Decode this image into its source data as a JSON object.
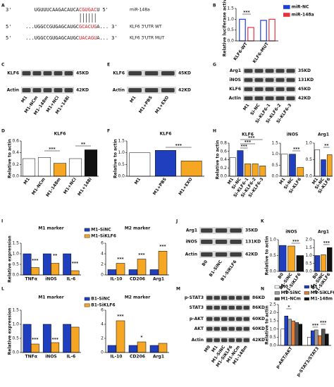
{
  "panel_labels": [
    "A",
    "B",
    "C",
    "E",
    "G",
    "D",
    "F",
    "H",
    "I",
    "J",
    "K",
    "L",
    "M",
    "N"
  ],
  "sequence": {
    "lines": [
      {
        "start": "3'",
        "parts": [
          "UGUUUCAAGACAUCA",
          "CGUGAC",
          "U"
        ],
        "end": "5'",
        "name": "miR-148a"
      },
      {
        "start": "5'",
        "parts": [
          "...UGGCCGUGAGCAUGC",
          "GCACUG",
          "A..."
        ],
        "end": "3'",
        "name": "KLF6 3'UTR WT"
      },
      {
        "start": "5'",
        "parts": [
          "...UGGCCGUGAGCAUGC",
          "UACAGU",
          "A..."
        ],
        "end": "3'",
        "name": "KLF6 3'UTR MUT"
      }
    ]
  },
  "blots": [
    {
      "rows": [
        {
          "name": "KLF6",
          "kd": "45KD"
        },
        {
          "name": "Actin",
          "kd": "42KD"
        }
      ],
      "lanes": [
        "M1",
        "M1-NCm",
        "M1-148m",
        "M1+NCi",
        "M1+148i"
      ]
    },
    {
      "rows": [
        {
          "name": "KLF6",
          "kd": "45KD"
        },
        {
          "name": "Actin",
          "kd": "42KD"
        }
      ],
      "lanes": [
        "M1",
        "M1+PBS",
        "M1+EXO"
      ]
    },
    {
      "rows": [
        {
          "name": "Arg1",
          "kd": "35KD"
        },
        {
          "name": "iNOS",
          "kd": "131KD"
        },
        {
          "name": "KLF6",
          "kd": "45KD"
        },
        {
          "name": "Actin",
          "kd": "42KD"
        }
      ],
      "lanes": [
        "M1",
        "Si-NC",
        "Si-KLF6-1",
        "Si-KLF6-2",
        "Si-KLF6-3"
      ]
    },
    {
      "rows": [
        {
          "name": "Arg1",
          "kd": "35KD"
        },
        {
          "name": "iNOS",
          "kd": "131KD"
        },
        {
          "name": "Actin",
          "kd": "42KD"
        }
      ],
      "lanes": [
        "B0",
        "B1-SiNC",
        "B1-SiKLF6"
      ]
    },
    {
      "rows": [
        {
          "name": "p-STAT3",
          "kd": "86KD"
        },
        {
          "name": "STAT3",
          "kd": "86KD"
        },
        {
          "name": "p-AKT",
          "kd": "60KD"
        },
        {
          "name": "AKT",
          "kd": "60KD"
        },
        {
          "name": "Actin",
          "kd": "42KD"
        }
      ],
      "lanes": [
        "M0",
        "M1",
        "M1-SiNC",
        "M1-SiKLF6",
        "M1-NCm",
        "M1-148m"
      ]
    }
  ],
  "chart_data": [
    {
      "type": "bar",
      "ylabel": "Relative luciferase activity",
      "categories": [
        "KLF6-WT",
        "KLF6-MUT"
      ],
      "series": [
        {
          "name": "miR-NC",
          "color": "#1a3fd6",
          "values": [
            1.0,
            0.95
          ]
        },
        {
          "name": "miR-148a",
          "color": "#e8313d",
          "values": [
            0.62,
            1.0
          ]
        }
      ],
      "ylim": [
        0,
        1.5
      ],
      "yticks": [
        {
          "value": 0,
          "label": "0.0"
        },
        0.5,
        {
          "value": 1,
          "label": "1.0"
        },
        1.5
      ],
      "bar_style": "outline",
      "legend": "right",
      "annotations": [
        "***"
      ]
    },
    {
      "type": "bar",
      "title": "KLF6",
      "ylabel": "Relative to actin",
      "categories": [
        "M1",
        "M1-NCm",
        "M1-148m",
        "M1+NCi",
        "M1+148i"
      ],
      "values": [
        0.3,
        0.32,
        0.22,
        0.3,
        0.45
      ],
      "colors": [
        "#ffffff",
        "#ffffff",
        "#f5a623",
        "#ffffff",
        "#111111"
      ],
      "ylim": [
        0,
        0.6
      ],
      "yticks": [
        {
          "value": 0,
          "label": "0.0"
        },
        0.2,
        0.4,
        0.6
      ],
      "annotations": [
        "***",
        "**"
      ]
    },
    {
      "type": "bar",
      "title": "KLF6",
      "ylabel": "Relative to actin",
      "categories": [
        "M1",
        "M1+PBS",
        "M1+EXO"
      ],
      "values": [
        1.0,
        1.1,
        0.65
      ],
      "colors": [
        "#ffffff",
        "#1f3fbf",
        "#f5a623"
      ],
      "ylim": [
        0,
        1.5
      ],
      "yticks": [
        {
          "value": 0,
          "label": "0.0"
        },
        0.5,
        {
          "value": 1,
          "label": "1.0"
        },
        1.5
      ],
      "annotations": [
        "***"
      ]
    },
    {
      "type": "bar",
      "title": "KLF6",
      "ylabel": "Relative to actin",
      "categories": [
        "M1",
        "Si-NC",
        "Si-KLF6-1",
        "Si-KLF6-2",
        "Si-KLF6-3"
      ],
      "values": [
        0.45,
        0.62,
        0.3,
        0.3,
        0.25
      ],
      "colors": [
        "#ffffff",
        "#1f3fbf",
        "#f5a623",
        "#f5a623",
        "#f5a623"
      ],
      "ylim": [
        0,
        0.8
      ],
      "yticks": [
        {
          "value": 0,
          "label": "0.0"
        },
        0.2,
        0.4,
        0.6,
        0.8
      ],
      "annotations": [
        "***",
        "***",
        "***"
      ]
    },
    {
      "type": "bar",
      "title": "iNOS",
      "categories": [
        "M1",
        "Si-NC",
        "Si-KLF6"
      ],
      "values": [
        1.0,
        1.0,
        0.4
      ],
      "colors": [
        "#ffffff",
        "#1f3fbf",
        "#f5a623"
      ],
      "ylim": [
        0,
        1.5
      ],
      "yticks": [
        {
          "value": 0,
          "label": "0.0"
        },
        0.5,
        {
          "value": 1,
          "label": "1.0"
        },
        1.5
      ],
      "annotations": [
        "***"
      ]
    },
    {
      "type": "bar",
      "title": "Arg1",
      "categories": [
        "M1",
        "Si-NC",
        "Si-KLF6"
      ],
      "values": [
        0.8,
        0.5,
        0.65
      ],
      "colors": [
        "#ffffff",
        "#1f3fbf",
        "#f5a623"
      ],
      "ylim": [
        0,
        1.0
      ],
      "yticks": [
        {
          "value": 0,
          "label": "0.0"
        },
        0.5,
        {
          "value": 1,
          "label": "1.0"
        }
      ],
      "annotations": [
        "**"
      ]
    },
    {
      "type": "bar",
      "title": "M1 marker",
      "ylabel": "Relative expression",
      "categories": [
        "TNFα",
        "iNOS",
        "IL-6"
      ],
      "series": [
        {
          "name": "M1-SiNC",
          "color": "#1f3fbf",
          "values": [
            1,
            1,
            1
          ]
        },
        {
          "name": "M1-SiKLF6",
          "color": "#f5a623",
          "values": [
            0.35,
            0.55,
            0.2
          ]
        }
      ],
      "ylim": [
        0,
        1.5
      ],
      "yticks": [
        {
          "value": 0,
          "label": "0.0"
        },
        0.5,
        {
          "value": 1,
          "label": "1.0"
        },
        1.5
      ],
      "legend": "top",
      "annotations": [
        "***",
        "**",
        "***"
      ]
    },
    {
      "type": "bar",
      "title": "M2 marker",
      "categories": [
        "IL-10",
        "CD206",
        "Arg1"
      ],
      "series": [
        {
          "color": "#1f3fbf",
          "values": [
            1,
            1,
            1
          ]
        },
        {
          "color": "#f5a623",
          "values": [
            2.2,
            3.0,
            4.5
          ]
        }
      ],
      "ylim": [
        0,
        6
      ],
      "yticks": [
        0,
        2,
        4,
        6
      ],
      "annotations": [
        "***",
        "***",
        "***"
      ]
    },
    {
      "type": "bar",
      "title": "iNOS",
      "ylabel": "Relative to actin",
      "categories": [
        "B0",
        "B1-SiNC",
        "B1-SiKLF6"
      ],
      "values": [
        0.82,
        0.8,
        0.5
      ],
      "colors": [
        "#1f3fbf",
        "#f5a623",
        "#111111"
      ],
      "ylim": [
        0,
        1.0
      ],
      "yticks": [
        {
          "value": 0,
          "label": "0.0"
        },
        0.5,
        {
          "value": 1,
          "label": "1.0"
        }
      ],
      "annotations": [
        "***"
      ]
    },
    {
      "type": "bar",
      "title": "Arg1",
      "categories": [
        "B0",
        "B1-SiNC",
        "B1-SiKLF6"
      ],
      "values": [
        1.0,
        1.05,
        1.5
      ],
      "colors": [
        "#1f3fbf",
        "#f5a623",
        "#111111"
      ],
      "ylim": [
        0,
        2.0
      ],
      "yticks": [
        {
          "value": 0,
          "label": "0.0"
        },
        0.5,
        {
          "value": 1,
          "label": "1.0"
        },
        1.5,
        {
          "value": 2,
          "label": "2.0"
        }
      ],
      "annotations": [
        "***"
      ]
    },
    {
      "type": "bar",
      "title": "M1 marker",
      "ylabel": "Relative expression",
      "categories": [
        "TNFα",
        "iNOS",
        "IL-6"
      ],
      "series": [
        {
          "name": "B1-SiNC",
          "color": "#1f3fbf",
          "values": [
            1,
            1,
            1
          ]
        },
        {
          "name": "B1-SiKLF6",
          "color": "#f5a623",
          "values": [
            0.3,
            0.35,
            0.9
          ]
        }
      ],
      "ylim": [
        0,
        1.5
      ],
      "yticks": [
        {
          "value": 0,
          "label": "0.0"
        },
        0.5,
        {
          "value": 1,
          "label": "1.0"
        },
        1.5
      ],
      "legend": "top",
      "annotations": [
        "***",
        "***"
      ]
    },
    {
      "type": "bar",
      "title": "M2 marker",
      "categories": [
        "IL-10",
        "CD206",
        "Arg1"
      ],
      "series": [
        {
          "color": "#1f3fbf",
          "values": [
            1,
            1,
            1
          ]
        },
        {
          "color": "#f5a623",
          "values": [
            4.5,
            1.5,
            1.3
          ]
        }
      ],
      "ylim": [
        0,
        6
      ],
      "yticks": [
        0,
        2,
        4,
        6
      ],
      "annotations": [
        "***",
        "*"
      ]
    },
    {
      "type": "bar",
      "ylabel": "Relative to actin",
      "categories": [
        "p-AKT/AKT",
        "p-STAT3/STAT3"
      ],
      "series": [
        {
          "name": "M0",
          "color": "#ffffff",
          "values": [
            1.0,
            0.5
          ]
        },
        {
          "name": "M1",
          "color": "#1f3fbf",
          "values": [
            1.8,
            0.9
          ]
        },
        {
          "name": "M1-SiNC",
          "color": "#9a9a9a",
          "values": [
            1.6,
            0.95
          ]
        },
        {
          "name": "M1-SiKLF6",
          "color": "#e07b39",
          "values": [
            1.5,
            0.6
          ]
        },
        {
          "name": "M1-NCm",
          "color": "#555555",
          "values": [
            1.4,
            1.0
          ]
        },
        {
          "name": "M1-148m",
          "color": "#111111",
          "values": [
            1.3,
            0.7
          ]
        }
      ],
      "ylim": [
        0,
        2.5
      ],
      "yticks": [
        {
          "value": 0,
          "label": "0.0"
        },
        0.5,
        {
          "value": 1,
          "label": "1.0"
        },
        1.5,
        {
          "value": 2,
          "label": "2.0"
        },
        2.5
      ],
      "legend": "top",
      "annotations": [
        "*",
        "***",
        "***"
      ]
    }
  ]
}
